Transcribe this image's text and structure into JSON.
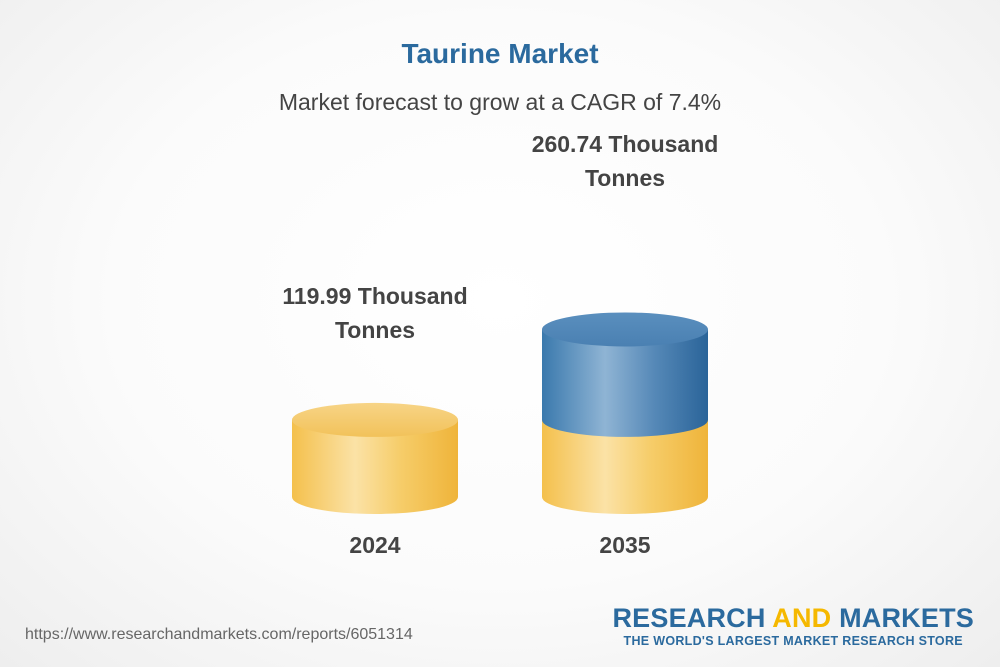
{
  "header": {
    "title": "Taurine Market",
    "subtitle": "Market forecast to grow at a CAGR of 7.4%"
  },
  "chart_data": {
    "type": "bar",
    "title": "Taurine Market",
    "subtitle": "Market forecast to grow at a CAGR of 7.4%",
    "categories": [
      "2024",
      "2035"
    ],
    "values": [
      119.99,
      260.74
    ],
    "unit": "Thousand Tonnes",
    "value_labels": [
      "119.99 Thousand Tonnes",
      "260.74 Thousand Tonnes"
    ],
    "value_label_lines": [
      [
        "119.99 Thousand",
        "Tonnes"
      ],
      [
        "260.74 Thousand",
        "Tonnes"
      ]
    ],
    "colors": {
      "base": "#f5c453",
      "growth": "#3f7fb2"
    },
    "grid": false
  },
  "footer": {
    "url": "https://www.researchandmarkets.com/reports/6051314",
    "brand_part1": "RESEARCH",
    "brand_part2": "AND",
    "brand_part3": "MARKETS",
    "tagline": "THE WORLD'S LARGEST MARKET RESEARCH STORE"
  }
}
